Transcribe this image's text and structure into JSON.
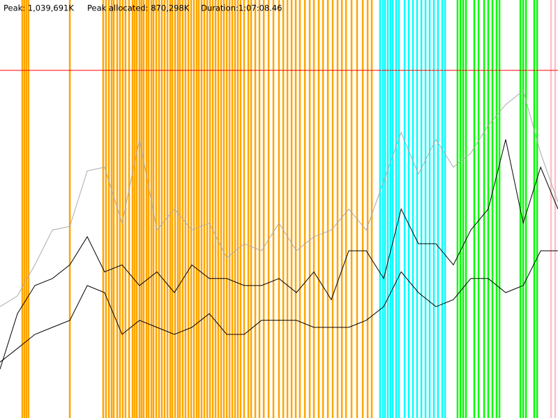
{
  "header": [
    "Peak: 1,039,691K",
    "Peak allocated: 870,298K",
    "Duration:1:07:08.46"
  ],
  "chart_data": {
    "type": "line",
    "xlim": [
      0,
      4028.46
    ],
    "ylim": [
      0,
      1250000
    ],
    "peak_line": {
      "value": 1039691,
      "color": "#ff0000"
    },
    "event_groups": [
      {
        "color": "#ffa500",
        "x": [
          161,
          176,
          191,
          206,
          504,
          745,
          765,
          786,
          806,
          821,
          846,
          866,
          886,
          906,
          932,
          957,
          972,
          987,
          1007,
          1022,
          1037,
          1058,
          1073,
          1093,
          1108,
          1128,
          1148,
          1168,
          1188,
          1209,
          1229,
          1244,
          1264,
          1284,
          1299,
          1319,
          1339,
          1360,
          1380,
          1400,
          1420,
          1435,
          1455,
          1475,
          1496,
          1516,
          1536,
          1556,
          1576,
          1596,
          1616,
          1637,
          1657,
          1677,
          1697,
          1717,
          1737,
          1762,
          1793,
          1813,
          1843,
          1873,
          1904,
          1939,
          1974,
          2014,
          2045,
          2075,
          2105,
          2135,
          2165,
          2201,
          2236,
          2266,
          2301,
          2332,
          2367,
          2402,
          2437,
          2468,
          2498,
          2538,
          2578,
          2619,
          2654,
          2684
        ]
      },
      {
        "color": "#00ffff",
        "x": [
          2744,
          2765,
          2780,
          2800,
          2820,
          2835,
          2860,
          2880,
          2921,
          2951,
          2981,
          3011,
          3042,
          3072,
          3102,
          3132,
          3162,
          3193,
          3213
        ]
      },
      {
        "color": "#00ff00",
        "x": [
          3303,
          3324,
          3344,
          3364,
          3424,
          3455,
          3495,
          3525,
          3555,
          3585,
          3606,
          3757,
          3777,
          3797,
          3857,
          3878
        ]
      },
      {
        "color": "#ffc0cb",
        "x": [
          3978,
          4008
        ]
      }
    ],
    "x": [
      0,
      126,
      252,
      378,
      504,
      630,
      755,
      881,
      1007,
      1133,
      1259,
      1385,
      1511,
      1637,
      1763,
      1888,
      2014,
      2140,
      2266,
      2392,
      2518,
      2644,
      2770,
      2896,
      3021,
      3147,
      3273,
      3399,
      3525,
      3651,
      3777,
      3903,
      4028
    ],
    "series": [
      {
        "color": "#aaaaaa",
        "values": [
          333000,
          365000,
          458000,
          562000,
          573000,
          739000,
          750000,
          583000,
          833000,
          562000,
          625000,
          562000,
          583000,
          479000,
          521000,
          500000,
          583000,
          500000,
          542000,
          562000,
          625000,
          562000,
          708000,
          854000,
          729000,
          833000,
          750000,
          792000,
          875000,
          937000,
          979000,
          792000,
          646000
        ]
      },
      {
        "color": "#000000",
        "values": [
          146000,
          312000,
          396000,
          417000,
          458000,
          542000,
          437000,
          458000,
          396000,
          437000,
          375000,
          458000,
          417000,
          417000,
          396000,
          396000,
          417000,
          375000,
          437000,
          354000,
          500000,
          500000,
          417000,
          625000,
          521000,
          521000,
          458000,
          562000,
          625000,
          833000,
          583000,
          750000,
          625000
        ]
      },
      {
        "color": "#000000",
        "values": [
          167000,
          208000,
          250000,
          271000,
          292000,
          396000,
          375000,
          250000,
          292000,
          271000,
          250000,
          271000,
          312000,
          250000,
          250000,
          292000,
          292000,
          292000,
          271000,
          271000,
          271000,
          292000,
          333000,
          437000,
          375000,
          333000,
          354000,
          417000,
          417000,
          375000,
          396000,
          500000,
          500000
        ]
      }
    ]
  }
}
